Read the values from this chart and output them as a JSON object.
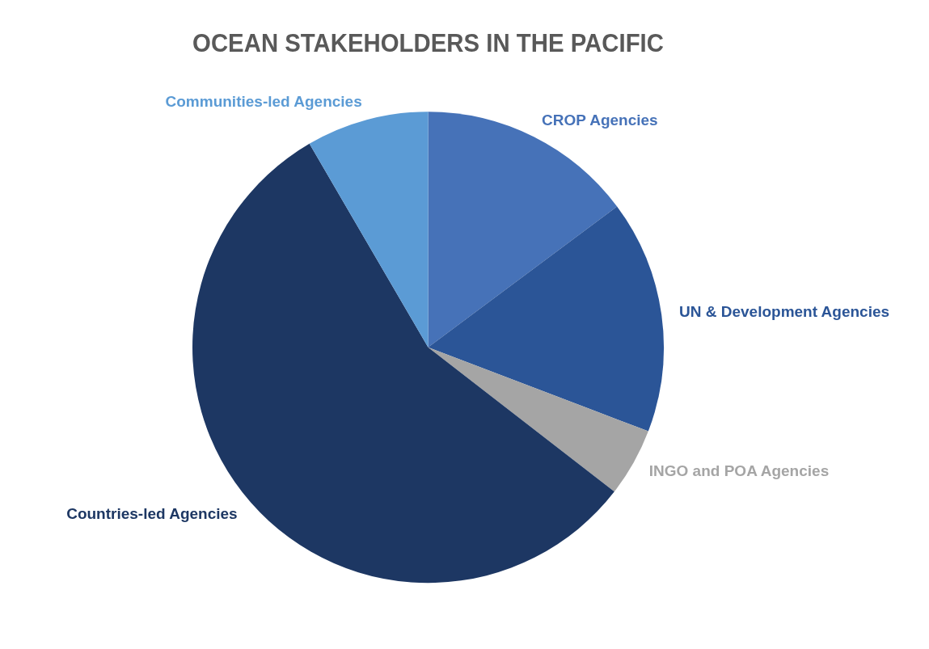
{
  "chart_data": {
    "type": "pie",
    "title": "OCEAN STAKEHOLDERS IN THE PACIFIC",
    "categories": [
      "CROP Agencies",
      "UN & Development Agencies",
      "INGO and POA Agencies",
      "Countries-led Agencies",
      "Communities-led Agencies"
    ],
    "values": [
      14.8,
      16.0,
      4.7,
      56.1,
      8.4
    ],
    "colors": [
      "#4672b8",
      "#2b5597",
      "#a5a5a5",
      "#1d3763",
      "#5b9bd5"
    ]
  }
}
